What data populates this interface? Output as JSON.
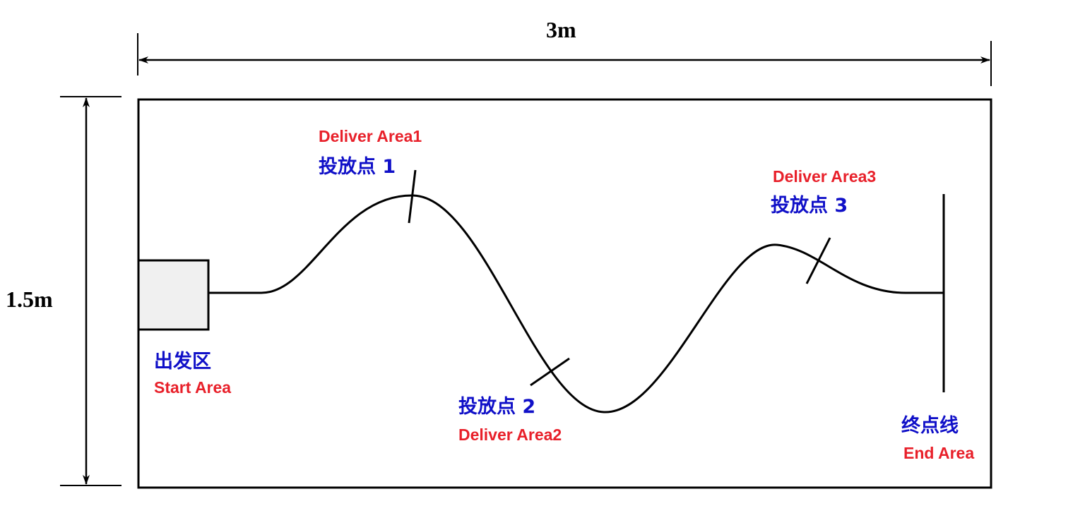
{
  "dimensions": {
    "width_label": "3m",
    "height_label": "1.5m"
  },
  "areas": {
    "start": {
      "cn": "出发区",
      "en": "Start Area"
    },
    "deliver1": {
      "cn": "投放点 1",
      "en": "Deliver Area1"
    },
    "deliver2": {
      "cn": "投放点 2",
      "en": "Deliver Area2"
    },
    "deliver3": {
      "cn": "投放点 3",
      "en": "Deliver Area3"
    },
    "end": {
      "cn": "终点线",
      "en": "End Area"
    }
  },
  "colors": {
    "line": "#000000",
    "chinese_label": "#1010c8",
    "english_label": "#e8202a",
    "start_box_fill": "#f0f0f0"
  }
}
